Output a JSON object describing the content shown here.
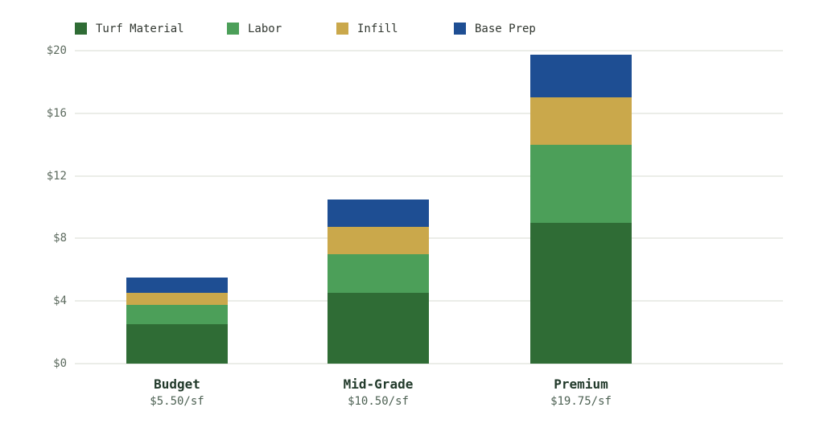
{
  "page": {
    "background": "#ffffff"
  },
  "legend": {
    "items": [
      {
        "label": "Turf Material",
        "color": "#2f6c35"
      },
      {
        "label": "Labor",
        "color": "#4c9f59"
      },
      {
        "label": "Infill",
        "color": "#caa84b"
      },
      {
        "label": "Base Prep",
        "color": "#1e4e93"
      }
    ]
  },
  "chart_data": {
    "type": "bar",
    "stacked": true,
    "title": "",
    "xlabel": "",
    "ylabel": "",
    "categories": [
      "Budget",
      "Mid-Grade",
      "Premium"
    ],
    "category_sublabels": [
      "$5.50/sf",
      "$10.50/sf",
      "$19.75/sf"
    ],
    "series": [
      {
        "name": "Turf Material",
        "color": "#2f6c35",
        "values": [
          2.5,
          4.5,
          9.0
        ]
      },
      {
        "name": "Labor",
        "color": "#4c9f59",
        "values": [
          1.25,
          2.5,
          5.0
        ]
      },
      {
        "name": "Infill",
        "color": "#caa84b",
        "values": [
          0.75,
          1.75,
          3.0
        ]
      },
      {
        "name": "Base Prep",
        "color": "#1e4e93",
        "values": [
          1.0,
          1.75,
          2.75
        ]
      }
    ],
    "totals": [
      5.5,
      10.5,
      19.75
    ],
    "y_axis": {
      "range": [
        0,
        20
      ],
      "ticks": [
        0,
        4,
        8,
        12,
        16,
        20
      ],
      "tick_labels": [
        "$0",
        "$4",
        "$8",
        "$12",
        "$16",
        "$20"
      ],
      "tick_prefix": "$"
    },
    "grid": true,
    "gridline_color": "#ebede8",
    "legend_position": "top"
  }
}
